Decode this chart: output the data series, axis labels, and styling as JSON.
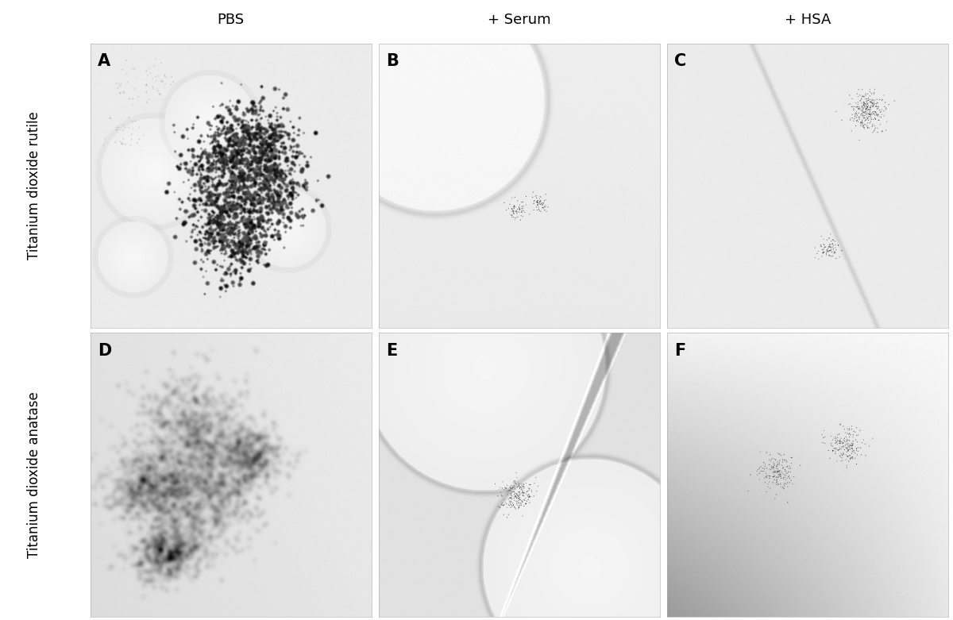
{
  "col_labels": [
    "PBS",
    "+ Serum",
    "+ HSA"
  ],
  "row_labels": [
    "Titanium dioxide rutile",
    "Titanium dioxide anatase"
  ],
  "panel_labels": [
    [
      "A",
      "B",
      "C"
    ],
    [
      "D",
      "E",
      "F"
    ]
  ],
  "bg_color": "#ffffff",
  "label_fontsize": 13,
  "panel_label_fontsize": 15,
  "row_label_fontsize": 12,
  "col_label_fontsize": 13,
  "fig_width": 12.0,
  "fig_height": 7.81
}
